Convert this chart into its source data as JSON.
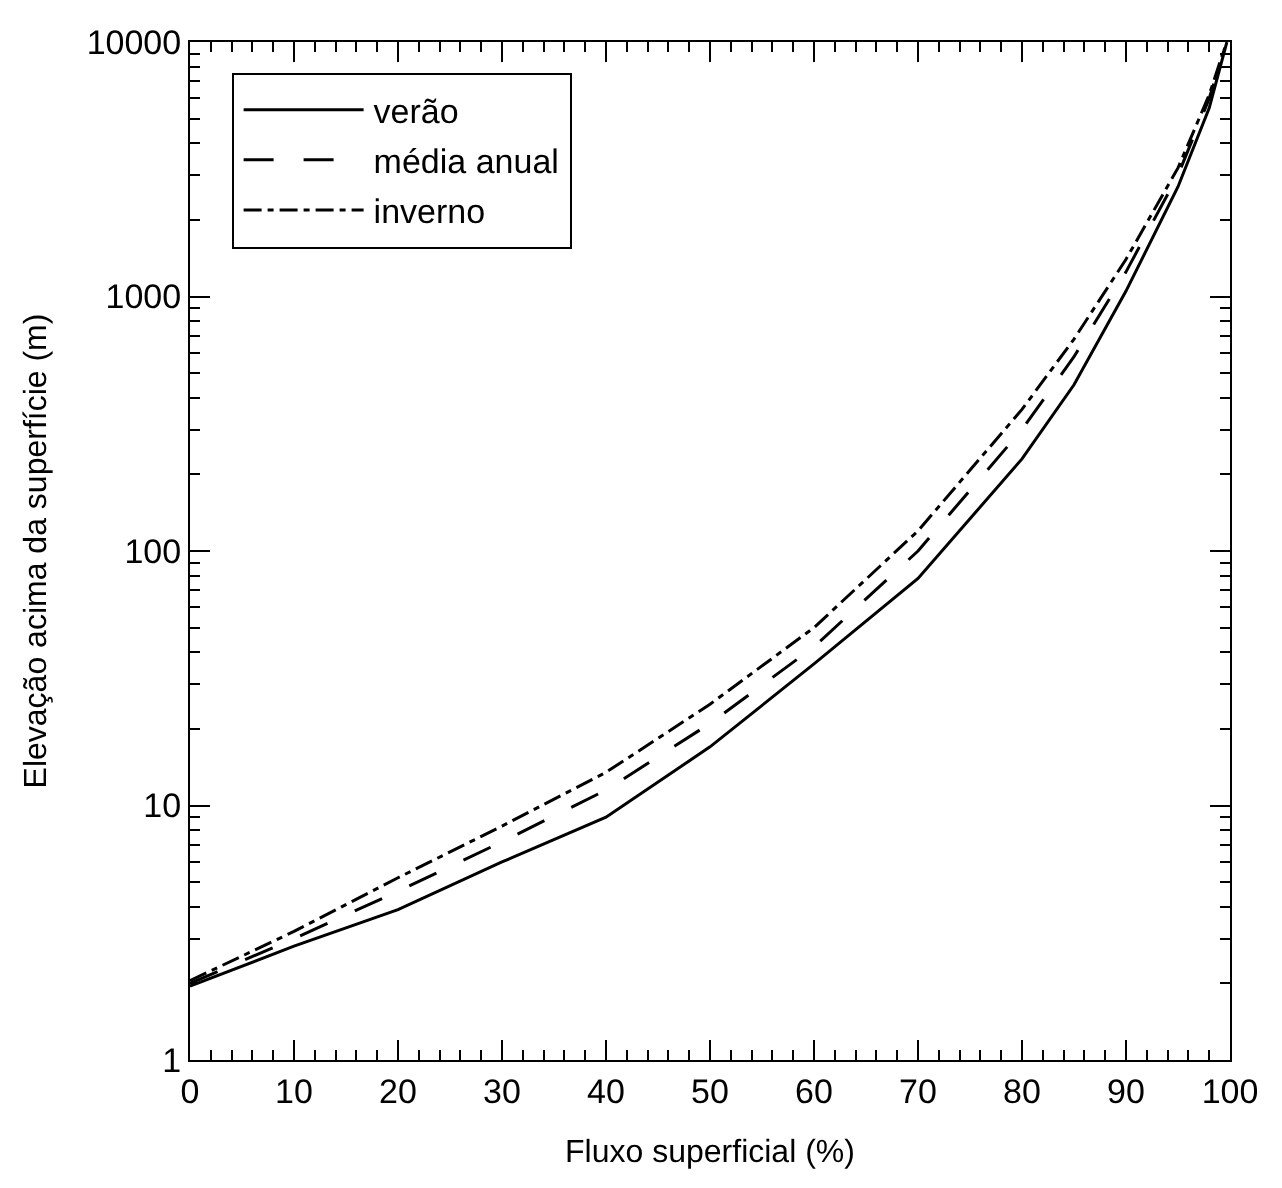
{
  "chart_data": {
    "type": "line",
    "xlabel": "Fluxo superficial (%)",
    "ylabel": "Elevação acima da superfície (m)",
    "series": [
      {
        "name": "verão",
        "color": "#000000",
        "line_style": "solid",
        "x": [
          0,
          10,
          20,
          30,
          40,
          50,
          60,
          70,
          80,
          85,
          90,
          95,
          98,
          99.7
        ],
        "values": [
          1.95,
          2.8,
          3.9,
          6.0,
          9.0,
          17,
          36,
          78,
          230,
          450,
          1050,
          2700,
          5500,
          10000
        ]
      },
      {
        "name": "média anual",
        "color": "#000000",
        "line_style": "dashed",
        "x": [
          0,
          10,
          20,
          30,
          40,
          50,
          60,
          70,
          80,
          85,
          90,
          95,
          98,
          99.5
        ],
        "values": [
          2,
          3.0,
          4.6,
          7.2,
          11.5,
          21,
          42,
          100,
          300,
          580,
          1250,
          3000,
          6000,
          9500
        ]
      },
      {
        "name": "inverno",
        "color": "#000000",
        "line_style": "dashdot",
        "x": [
          0,
          10,
          20,
          30,
          40,
          50,
          60,
          70,
          80,
          85,
          90,
          95,
          98,
          99.3
        ],
        "values": [
          2.05,
          3.2,
          5.2,
          8.3,
          13.5,
          25,
          50,
          120,
          360,
          680,
          1400,
          3200,
          6200,
          9000
        ]
      }
    ],
    "log": "y",
    "xlim": [
      0,
      100
    ],
    "xticks": [
      0,
      10,
      20,
      30,
      40,
      50,
      60,
      70,
      80,
      90,
      100
    ],
    "ylim": [
      1,
      10000
    ],
    "yticks": [
      1,
      10,
      100,
      1000,
      10000
    ],
    "legend": "top left",
    "marker": "none"
  }
}
